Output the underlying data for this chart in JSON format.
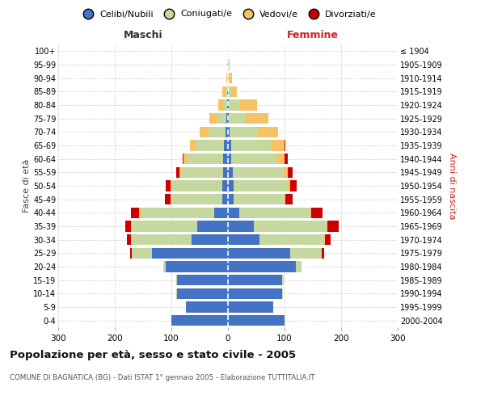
{
  "age_groups": [
    "0-4",
    "5-9",
    "10-14",
    "15-19",
    "20-24",
    "25-29",
    "30-34",
    "35-39",
    "40-44",
    "45-49",
    "50-54",
    "55-59",
    "60-64",
    "65-69",
    "70-74",
    "75-79",
    "80-84",
    "85-89",
    "90-94",
    "95-99",
    "100+"
  ],
  "birth_years": [
    "2000-2004",
    "1995-1999",
    "1990-1994",
    "1985-1989",
    "1980-1984",
    "1975-1979",
    "1970-1974",
    "1965-1969",
    "1960-1964",
    "1955-1959",
    "1950-1954",
    "1945-1949",
    "1940-1944",
    "1935-1939",
    "1930-1934",
    "1925-1929",
    "1920-1924",
    "1915-1919",
    "1910-1914",
    "1905-1909",
    "≤ 1904"
  ],
  "maschi": {
    "celibi": [
      100,
      75,
      90,
      90,
      110,
      135,
      65,
      55,
      25,
      10,
      10,
      8,
      8,
      7,
      5,
      3,
      2,
      2,
      0,
      0,
      0
    ],
    "coniugati": [
      0,
      0,
      1,
      2,
      5,
      35,
      105,
      115,
      130,
      90,
      90,
      75,
      65,
      50,
      30,
      15,
      5,
      3,
      1,
      0,
      0
    ],
    "vedovi": [
      0,
      0,
      0,
      0,
      0,
      0,
      1,
      1,
      2,
      1,
      2,
      3,
      5,
      10,
      15,
      15,
      10,
      5,
      2,
      1,
      0
    ],
    "divorziati": [
      0,
      0,
      0,
      0,
      0,
      3,
      8,
      10,
      15,
      10,
      8,
      5,
      2,
      0,
      0,
      0,
      0,
      0,
      0,
      0,
      0
    ]
  },
  "femmine": {
    "nubili": [
      100,
      80,
      95,
      95,
      120,
      110,
      55,
      45,
      20,
      10,
      10,
      8,
      5,
      5,
      3,
      2,
      1,
      0,
      0,
      0,
      0
    ],
    "coniugate": [
      0,
      0,
      2,
      3,
      10,
      55,
      115,
      130,
      125,
      90,
      95,
      90,
      80,
      70,
      50,
      30,
      20,
      5,
      2,
      1,
      0
    ],
    "vedove": [
      0,
      0,
      0,
      0,
      0,
      0,
      1,
      1,
      2,
      2,
      5,
      8,
      15,
      25,
      35,
      40,
      30,
      10,
      5,
      2,
      0
    ],
    "divorziate": [
      0,
      0,
      0,
      0,
      0,
      5,
      10,
      20,
      20,
      12,
      12,
      8,
      5,
      2,
      0,
      0,
      0,
      0,
      0,
      0,
      0
    ]
  },
  "colors": {
    "celibi_nubili": "#4472c4",
    "coniugati": "#c5d8a0",
    "vedovi": "#f5c265",
    "divorziati": "#cc0000"
  },
  "xlim": 300,
  "title": "Popolazione per età, sesso e stato civile - 2005",
  "subtitle": "COMUNE DI BAGNATICA (BG) - Dati ISTAT 1° gennaio 2005 - Elaborazione TUTTITALIA.IT",
  "ylabel_left": "Fasce di età",
  "ylabel_right": "Anni di nascita",
  "xlabel_left": "Maschi",
  "xlabel_right": "Femmine",
  "background_color": "#ffffff",
  "grid_color": "#bbbbbb",
  "legend_labels": [
    "Celibi/Nubili",
    "Coniugati/e",
    "Vedovi/e",
    "Divorziati/e"
  ]
}
